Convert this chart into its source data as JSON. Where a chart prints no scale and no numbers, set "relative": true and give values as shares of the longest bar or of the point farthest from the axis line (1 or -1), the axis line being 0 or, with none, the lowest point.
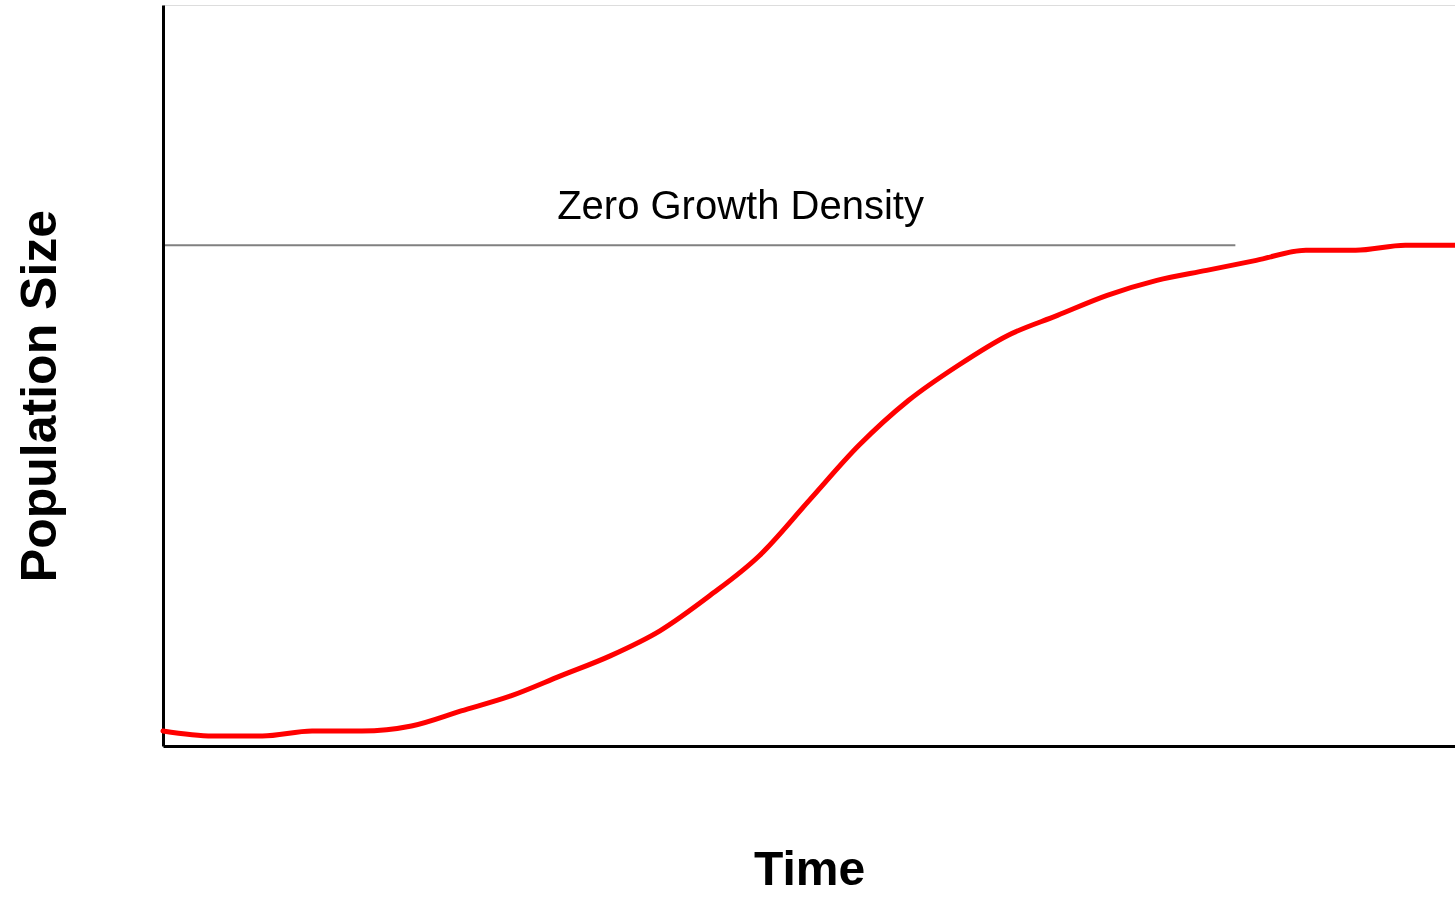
{
  "chart_data": {
    "type": "line",
    "xlabel": "Time",
    "ylabel": "Population Size",
    "relative": true,
    "categories": [
      null,
      null,
      null,
      null,
      null,
      null,
      null,
      null,
      null,
      null,
      null,
      null,
      null,
      null,
      null,
      null,
      null,
      null,
      null,
      null,
      null,
      null,
      null,
      null,
      null,
      null,
      null
    ],
    "series": [
      {
        "color": "#ff0000",
        "values": [
          0.03,
          0.02,
          0.02,
          0.03,
          0.03,
          0.04,
          0.07,
          0.1,
          0.14,
          0.18,
          0.23,
          0.3,
          0.38,
          0.49,
          0.6,
          0.69,
          0.76,
          0.82,
          0.86,
          0.9,
          0.93,
          0.95,
          0.97,
          0.99,
          0.99,
          1.0,
          1.0
        ]
      }
    ],
    "ref_lines": [
      {
        "axis": "y",
        "value": 1.0,
        "label": "Zero Growth Density",
        "color": "#808080"
      }
    ]
  }
}
